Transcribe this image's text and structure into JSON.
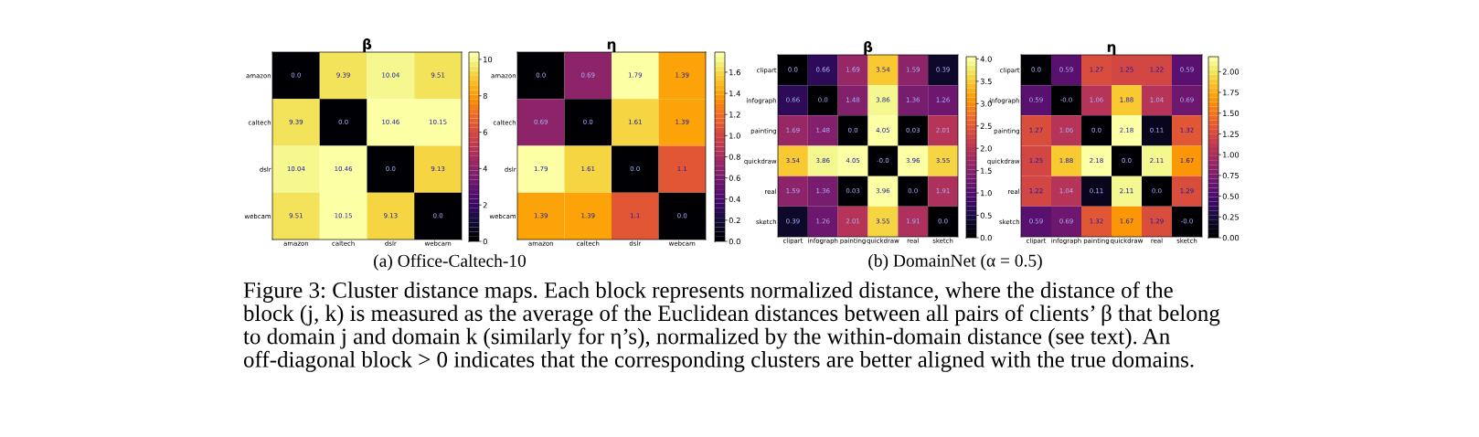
{
  "chart_data": [
    {
      "type": "heatmap",
      "title": "β",
      "categories": [
        "amazon",
        "caltech",
        "dslr",
        "webcam"
      ],
      "y_categories": [
        "amazon",
        "caltech",
        "dslr",
        "webcam"
      ],
      "cells": [
        [
          0,
          9.39,
          10.04,
          9.51
        ],
        [
          9.39,
          0,
          10.46,
          10.15
        ],
        [
          10.04,
          10.46,
          0,
          9.13
        ],
        [
          9.51,
          10.15,
          9.13,
          0
        ]
      ],
      "cell_labels": [
        [
          "0.0",
          "9.39",
          "10.04",
          "9.51"
        ],
        [
          "9.39",
          "0.0",
          "10.46",
          "10.15"
        ],
        [
          "10.04",
          "10.46",
          "0.0",
          "9.13"
        ],
        [
          "9.51",
          "10.15",
          "9.13",
          "0.0"
        ]
      ],
      "clim": [
        0,
        10.4
      ],
      "cticks": [
        0,
        2,
        4,
        6,
        8,
        10
      ],
      "annotations": [
        "(a) Office-Caltech-10"
      ]
    },
    {
      "type": "heatmap",
      "title": "η",
      "categories": [
        "amazon",
        "caltech",
        "dslr",
        "webcam"
      ],
      "y_categories": [
        "amazon",
        "caltech",
        "dslr",
        "webcam"
      ],
      "cells": [
        [
          0,
          0.69,
          1.79,
          1.39
        ],
        [
          0.69,
          0,
          1.61,
          1.39
        ],
        [
          1.79,
          1.61,
          0,
          1.1
        ],
        [
          1.39,
          1.39,
          1.1,
          0
        ]
      ],
      "cell_labels": [
        [
          "0.0",
          "0.69",
          "1.79",
          "1.39"
        ],
        [
          "0.69",
          "0.0",
          "1.61",
          "1.39"
        ],
        [
          "1.79",
          "1.61",
          "0.0",
          "1.1"
        ],
        [
          "1.39",
          "1.39",
          "1.1",
          "0.0"
        ]
      ],
      "clim": [
        0,
        1.79
      ],
      "cticks": [
        {
          "value": 0,
          "label": "0.0"
        },
        {
          "value": 0.2,
          "label": "0.2"
        },
        {
          "value": 0.4,
          "label": "0.4"
        },
        {
          "value": 0.6,
          "label": "0.6"
        },
        {
          "value": 0.8,
          "label": "0.8"
        },
        {
          "value": 1.0,
          "label": "1.0"
        },
        {
          "value": 1.2,
          "label": "1.2"
        },
        {
          "value": 1.4,
          "label": "1.4"
        },
        {
          "value": 1.6,
          "label": "1.6"
        }
      ]
    },
    {
      "type": "heatmap",
      "title": "β",
      "categories": [
        "clipart",
        "infograph",
        "painting",
        "quickdraw",
        "real",
        "sketch"
      ],
      "y_categories": [
        "clipart",
        "infograph",
        "painting",
        "quickdraw",
        "real",
        "sketch"
      ],
      "cells": [
        [
          0,
          0.66,
          1.69,
          3.54,
          1.59,
          0.39
        ],
        [
          0.66,
          0,
          1.48,
          3.86,
          1.36,
          1.26
        ],
        [
          1.69,
          1.48,
          0,
          4.05,
          0.03,
          2.01
        ],
        [
          3.54,
          3.86,
          4.05,
          0,
          3.96,
          3.55
        ],
        [
          1.59,
          1.36,
          0.03,
          3.96,
          0,
          1.91
        ],
        [
          0.39,
          1.26,
          2.01,
          3.55,
          1.91,
          0
        ]
      ],
      "cell_labels": [
        [
          "0.0",
          "0.66",
          "1.69",
          "3.54",
          "1.59",
          "0.39"
        ],
        [
          "0.66",
          "0.0",
          "1.48",
          "3.86",
          "1.36",
          "1.26"
        ],
        [
          "1.69",
          "1.48",
          "0.0",
          "4.05",
          "0.03",
          "2.01"
        ],
        [
          "3.54",
          "3.86",
          "4.05",
          "-0.0",
          "3.96",
          "3.55"
        ],
        [
          "1.59",
          "1.36",
          "0.03",
          "3.96",
          "0.0",
          "1.91"
        ],
        [
          "0.39",
          "1.26",
          "2.01",
          "3.55",
          "1.91",
          "0.0"
        ]
      ],
      "clim": [
        0,
        4.05
      ],
      "cticks": [
        {
          "value": 0,
          "label": "0.0"
        },
        {
          "value": 0.5,
          "label": "0.5"
        },
        {
          "value": 1.0,
          "label": "1.0"
        },
        {
          "value": 1.5,
          "label": "1.5"
        },
        {
          "value": 2.0,
          "label": "2.0"
        },
        {
          "value": 2.5,
          "label": "2.5"
        },
        {
          "value": 3.0,
          "label": "3.0"
        },
        {
          "value": 3.5,
          "label": "3.5"
        },
        {
          "value": 4.0,
          "label": "4.0"
        }
      ],
      "annotations": [
        "(b) DomainNet (α = 0.5)"
      ]
    },
    {
      "type": "heatmap",
      "title": "η",
      "categories": [
        "clipart",
        "infograph",
        "painting",
        "quickdraw",
        "real",
        "sketch"
      ],
      "y_categories": [
        "clipart",
        "infograph",
        "painting",
        "quickdraw",
        "real",
        "sketch"
      ],
      "cells": [
        [
          0,
          0.59,
          1.27,
          1.25,
          1.22,
          0.59
        ],
        [
          0.59,
          0,
          1.06,
          1.88,
          1.04,
          0.69
        ],
        [
          1.27,
          1.06,
          0,
          2.18,
          0.11,
          1.32
        ],
        [
          1.25,
          1.88,
          2.18,
          0,
          2.11,
          1.67
        ],
        [
          1.22,
          1.04,
          0.11,
          2.11,
          0,
          1.29
        ],
        [
          0.59,
          0.69,
          1.32,
          1.67,
          1.29,
          0
        ]
      ],
      "cell_labels": [
        [
          "0.0",
          "0.59",
          "1.27",
          "1.25",
          "1.22",
          "0.59"
        ],
        [
          "0.59",
          "-0.0",
          "1.06",
          "1.88",
          "1.04",
          "0.69"
        ],
        [
          "1.27",
          "1.06",
          "0.0",
          "2.18",
          "0.11",
          "1.32"
        ],
        [
          "1.25",
          "1.88",
          "2.18",
          "0.0",
          "2.11",
          "1.67"
        ],
        [
          "1.22",
          "1.04",
          "0.11",
          "2.11",
          "0.0",
          "1.29"
        ],
        [
          "0.59",
          "0.69",
          "1.32",
          "1.67",
          "1.29",
          "-0.0"
        ]
      ],
      "clim": [
        0,
        2.18
      ],
      "cticks": [
        {
          "value": 0,
          "label": "0.00"
        },
        {
          "value": 0.25,
          "label": "0.25"
        },
        {
          "value": 0.5,
          "label": "0.50"
        },
        {
          "value": 0.75,
          "label": "0.75"
        },
        {
          "value": 1.0,
          "label": "1.00"
        },
        {
          "value": 1.25,
          "label": "1.25"
        },
        {
          "value": 1.5,
          "label": "1.50"
        },
        {
          "value": 1.75,
          "label": "1.75"
        },
        {
          "value": 2.0,
          "label": "2.00"
        }
      ],
      "annotations": [
        "Figure 3: Cluster distance maps. Each block represents normalized distance, where the distance of the block (j, k) is measured as the average of the Euclidean distances between all pairs of clients’ β that belong to domain j and domain k (similarly for η’s), normalized by the within-domain distance (see text). An off-diagonal block > 0 indicates that the corresponding clusters are better aligned with the true domains."
      ]
    }
  ]
}
